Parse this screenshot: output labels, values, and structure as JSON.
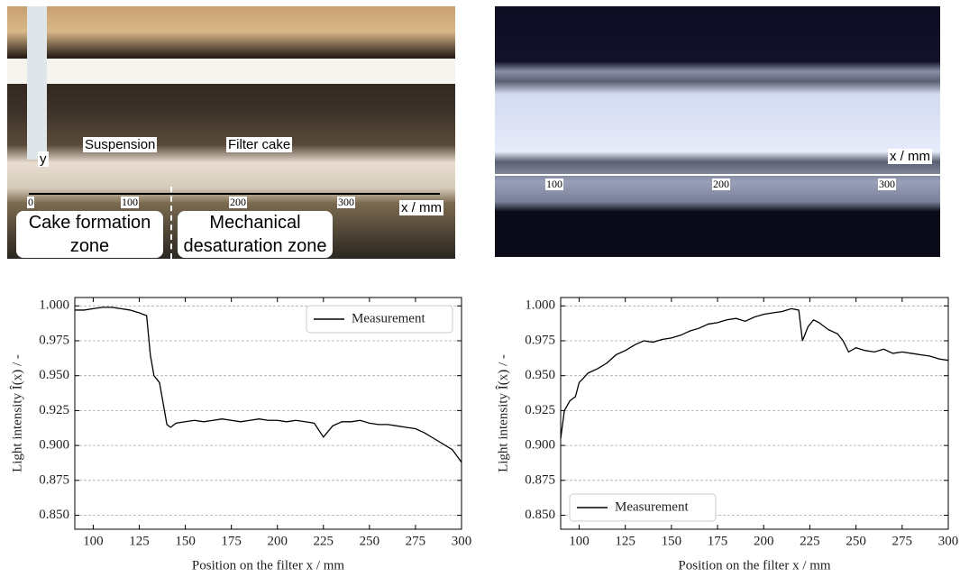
{
  "photos": {
    "left": {
      "suspension": "Suspension",
      "filter_cake": "Filter cake",
      "y_axis": "y",
      "ticks": [
        "0",
        "100",
        "200",
        "300"
      ],
      "x_label": "x / mm",
      "zone_1": "Cake formation zone",
      "zone_2": "Mechanical desaturation zone"
    },
    "right": {
      "ticks": [
        "100",
        "200",
        "300"
      ],
      "x_label": "x / mm"
    }
  },
  "chart_data": [
    {
      "type": "line",
      "xlabel": "Position on the filter x / mm",
      "ylabel": "Light intensity Î(x) / -",
      "xlim": [
        90,
        300
      ],
      "xticks": [
        100,
        125,
        150,
        175,
        200,
        225,
        250,
        275,
        300
      ],
      "ylim": [
        0.84,
        1.006
      ],
      "yticks": [
        {
          "value": 0.85,
          "label": "0.850"
        },
        0.875,
        {
          "value": 0.9,
          "label": "0.900"
        },
        0.925,
        {
          "value": 0.95,
          "label": "0.950"
        },
        0.975,
        {
          "value": 1,
          "label": "1.000"
        }
      ],
      "grid": true,
      "legend": "upper right",
      "x": [
        90,
        95,
        100,
        105,
        110,
        115,
        120,
        125,
        129,
        131,
        133,
        136,
        138,
        140,
        142,
        145,
        150,
        155,
        160,
        165,
        170,
        175,
        180,
        185,
        190,
        195,
        200,
        205,
        210,
        215,
        220,
        225,
        230,
        235,
        240,
        245,
        250,
        255,
        260,
        265,
        270,
        275,
        280,
        285,
        290,
        295,
        300
      ],
      "series": [
        {
          "name": "Measurement",
          "color": "#000000",
          "values": [
            0.997,
            0.997,
            0.998,
            0.999,
            0.999,
            0.998,
            0.997,
            0.995,
            0.993,
            0.965,
            0.95,
            0.945,
            0.93,
            0.915,
            0.913,
            0.916,
            0.917,
            0.918,
            0.917,
            0.918,
            0.919,
            0.918,
            0.917,
            0.918,
            0.919,
            0.918,
            0.918,
            0.917,
            0.918,
            0.917,
            0.916,
            0.906,
            0.914,
            0.917,
            0.917,
            0.918,
            0.916,
            0.915,
            0.915,
            0.914,
            0.913,
            0.912,
            0.909,
            0.905,
            0.901,
            0.897,
            0.888
          ]
        }
      ]
    },
    {
      "type": "line",
      "xlabel": "Position on the filter x / mm",
      "ylabel": "Light intensity Î(x) / -",
      "xlim": [
        90,
        300
      ],
      "xticks": [
        100,
        125,
        150,
        175,
        200,
        225,
        250,
        275,
        300
      ],
      "ylim": [
        0.84,
        1.006
      ],
      "yticks": [
        {
          "value": 0.85,
          "label": "0.850"
        },
        0.875,
        {
          "value": 0.9,
          "label": "0.900"
        },
        0.925,
        {
          "value": 0.95,
          "label": "0.950"
        },
        0.975,
        {
          "value": 1,
          "label": "1.000"
        }
      ],
      "grid": true,
      "legend": "lower left",
      "x": [
        90,
        92,
        95,
        98,
        100,
        105,
        110,
        115,
        120,
        125,
        130,
        135,
        140,
        145,
        150,
        155,
        160,
        165,
        170,
        175,
        180,
        185,
        190,
        195,
        200,
        205,
        210,
        215,
        219,
        221,
        224,
        227,
        230,
        235,
        240,
        243,
        246,
        250,
        255,
        260,
        265,
        270,
        275,
        280,
        285,
        290,
        295,
        300
      ],
      "series": [
        {
          "name": "Measurement",
          "color": "#000000",
          "values": [
            0.905,
            0.925,
            0.932,
            0.935,
            0.945,
            0.952,
            0.955,
            0.959,
            0.965,
            0.968,
            0.972,
            0.975,
            0.974,
            0.976,
            0.977,
            0.979,
            0.982,
            0.984,
            0.987,
            0.988,
            0.99,
            0.991,
            0.989,
            0.992,
            0.994,
            0.995,
            0.996,
            0.998,
            0.997,
            0.975,
            0.985,
            0.99,
            0.988,
            0.983,
            0.98,
            0.975,
            0.967,
            0.97,
            0.968,
            0.967,
            0.969,
            0.966,
            0.967,
            0.966,
            0.965,
            0.964,
            0.962,
            0.961
          ]
        }
      ]
    }
  ]
}
